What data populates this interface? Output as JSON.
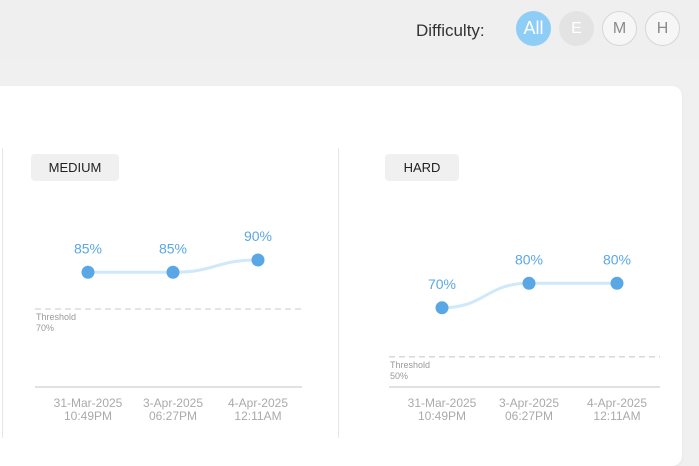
{
  "header": {
    "difficulty_label": "Difficulty:",
    "options": [
      {
        "label": "All",
        "state": "active"
      },
      {
        "label": "E",
        "state": "disabled"
      },
      {
        "label": "M",
        "state": "default"
      },
      {
        "label": "H",
        "state": "default"
      }
    ]
  },
  "colors": {
    "accent": "#8ecdf6",
    "point": "#5aa7e6",
    "line": "#cfe8fa",
    "value_label": "#5aa7e6",
    "threshold": "#d4d4d4",
    "axis_text": "#aaaaaa"
  },
  "chart_data": [
    {
      "type": "line",
      "title": "MEDIUM",
      "categories": [
        "31-Mar-2025 10:49PM",
        "3-Apr-2025 06:27PM",
        "4-Apr-2025 12:11AM"
      ],
      "values": [
        85,
        85,
        90
      ],
      "value_labels": [
        "85%",
        "85%",
        "90%"
      ],
      "tick_labels": [
        {
          "line1": "31-Mar-2025",
          "line2": "10:49PM"
        },
        {
          "line1": "3-Apr-2025",
          "line2": "06:27PM"
        },
        {
          "line1": "4-Apr-2025",
          "line2": "12:11AM"
        }
      ],
      "threshold": {
        "label": "Threshold",
        "value_label": "70%",
        "value": 70
      },
      "ylim": [
        0,
        100
      ],
      "grid": false
    },
    {
      "type": "line",
      "title": "HARD",
      "categories": [
        "31-Mar-2025 10:49PM",
        "3-Apr-2025 06:27PM",
        "4-Apr-2025 12:11AM"
      ],
      "values": [
        70,
        80,
        80
      ],
      "value_labels": [
        "70%",
        "80%",
        "80%"
      ],
      "tick_labels": [
        {
          "line1": "31-Mar-2025",
          "line2": "10:49PM"
        },
        {
          "line1": "3-Apr-2025",
          "line2": "06:27PM"
        },
        {
          "line1": "4-Apr-2025",
          "line2": "12:11AM"
        }
      ],
      "threshold": {
        "label": "Threshold",
        "value_label": "50%",
        "value": 50
      },
      "ylim": [
        0,
        100
      ],
      "grid": false
    }
  ]
}
